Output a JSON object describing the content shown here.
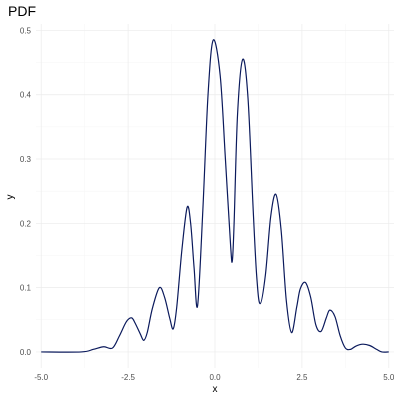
{
  "chart_data": {
    "type": "line",
    "title": "PDF",
    "xlabel": "x",
    "ylabel": "y",
    "xlim": [
      -5.15,
      5.15
    ],
    "ylim": [
      -0.025,
      0.51
    ],
    "x_ticks": [
      -5.0,
      -2.5,
      0.0,
      2.5,
      5.0
    ],
    "x_tick_labels": [
      "-5.0",
      "-2.5",
      "0.0",
      "2.5",
      "5.0"
    ],
    "y_ticks": [
      0.0,
      0.1,
      0.2,
      0.3,
      0.4,
      0.5
    ],
    "y_tick_labels": [
      "0.0",
      "0.1",
      "0.2",
      "0.3",
      "0.4",
      "0.5"
    ],
    "grid": true,
    "legend": "none",
    "line_color": "#0b1a5c",
    "series": [
      {
        "x": [
          -5.0,
          -3.85,
          -3.5,
          -3.2,
          -2.95,
          -2.75,
          -2.55,
          -2.4,
          -2.3,
          -2.15,
          -2.05,
          -1.95,
          -1.8,
          -1.6,
          -1.45,
          -1.3,
          -1.2,
          -1.1,
          -0.95,
          -0.8,
          -0.7,
          -0.6,
          -0.5,
          -0.35,
          -0.2,
          -0.05,
          0.15,
          0.3,
          0.45,
          0.5,
          0.55,
          0.65,
          0.8,
          0.95,
          1.1,
          1.2,
          1.3,
          1.45,
          1.6,
          1.75,
          1.9,
          2.05,
          2.2,
          2.35,
          2.45,
          2.6,
          2.75,
          2.9,
          3.05,
          3.2,
          3.3,
          3.45,
          3.6,
          3.75,
          3.9,
          4.05,
          4.25,
          4.45,
          4.65,
          4.8,
          5.0
        ],
        "y": [
          0.0,
          0.0,
          0.004,
          0.008,
          0.006,
          0.025,
          0.047,
          0.053,
          0.045,
          0.028,
          0.018,
          0.03,
          0.068,
          0.1,
          0.085,
          0.052,
          0.036,
          0.07,
          0.16,
          0.225,
          0.2,
          0.13,
          0.072,
          0.22,
          0.4,
          0.485,
          0.43,
          0.3,
          0.165,
          0.142,
          0.2,
          0.37,
          0.455,
          0.395,
          0.22,
          0.118,
          0.075,
          0.12,
          0.21,
          0.245,
          0.19,
          0.08,
          0.03,
          0.07,
          0.098,
          0.108,
          0.085,
          0.042,
          0.032,
          0.053,
          0.065,
          0.055,
          0.025,
          0.006,
          0.004,
          0.009,
          0.012,
          0.01,
          0.004,
          0.0,
          0.0
        ]
      }
    ]
  }
}
